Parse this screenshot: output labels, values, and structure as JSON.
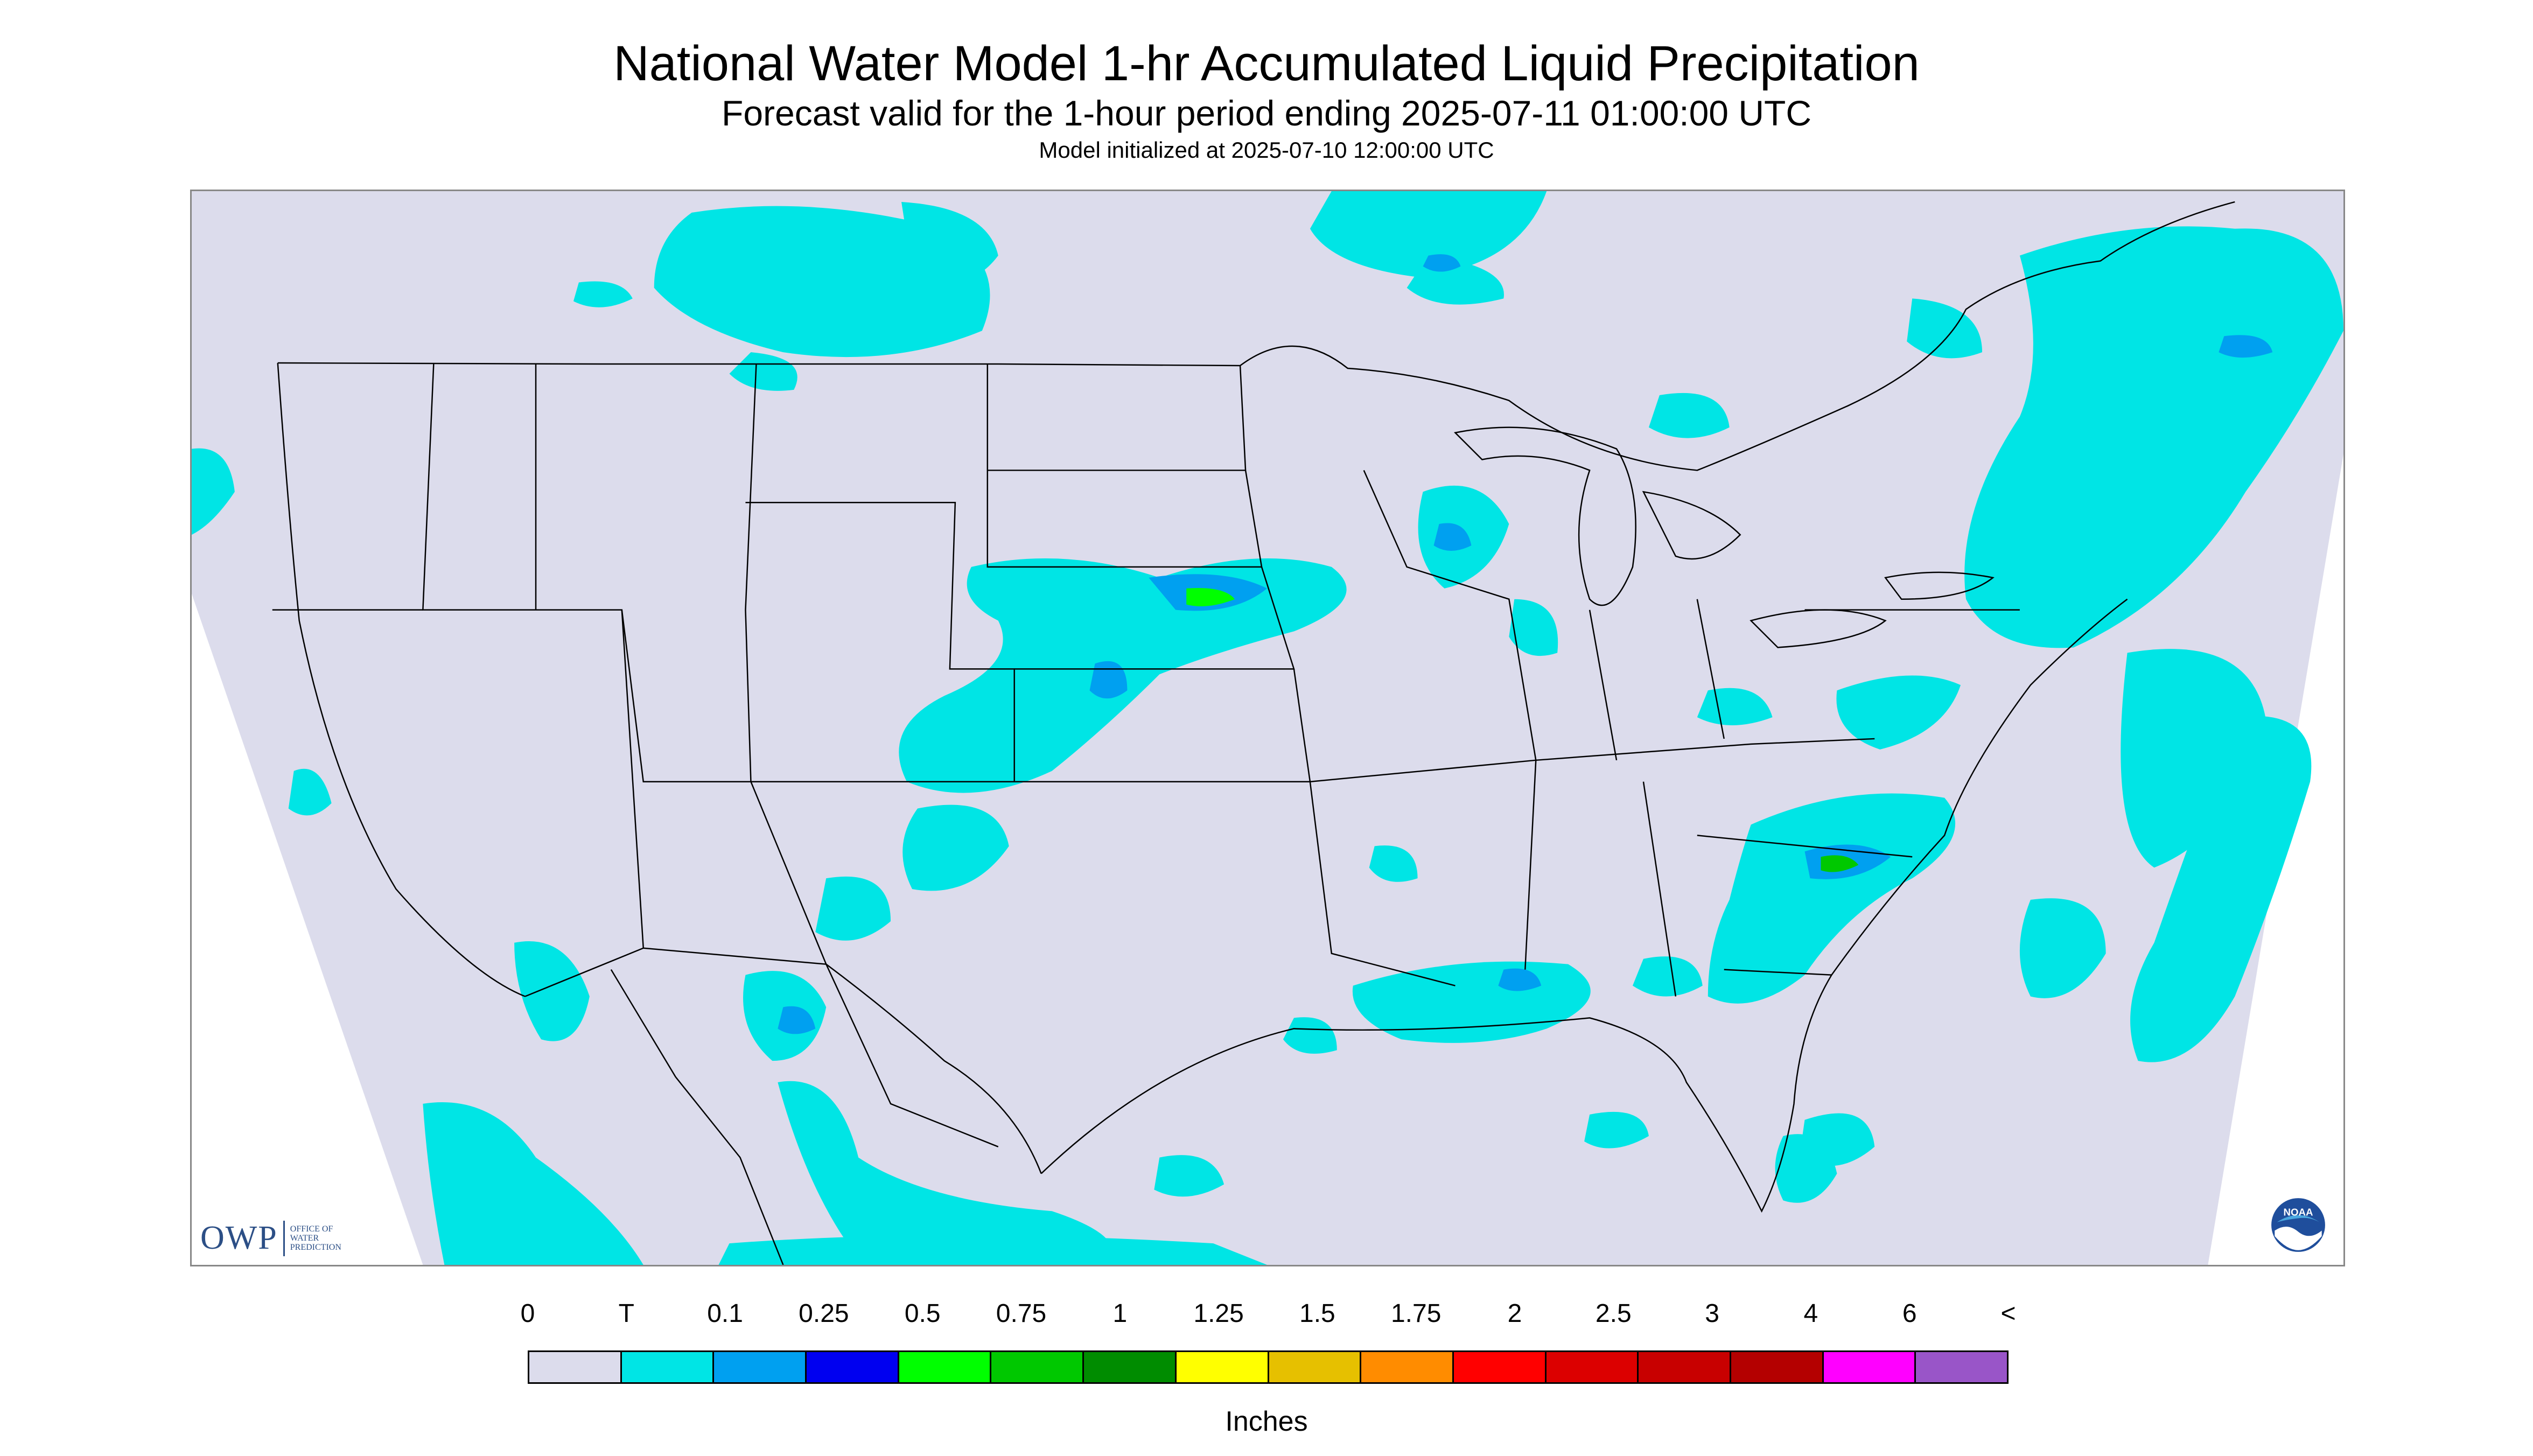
{
  "header": {
    "title": "National Water Model 1-hr Accumulated Liquid Precipitation",
    "subtitle": "Forecast valid for the 1-hour period ending 2025-07-11 01:00:00 UTC",
    "init_line": "Model initialized at 2025-07-10 12:00:00 UTC"
  },
  "map": {
    "region": "CONUS",
    "background_color": "#dcdcec",
    "precip_base_color": "#00e5e5",
    "boundary_color": "#000000",
    "owp_logo": {
      "text": "OWP",
      "sub_lines": [
        "OFFICE OF",
        "WATER",
        "PREDICTION"
      ]
    },
    "noaa_logo": {
      "text": "NOAA"
    }
  },
  "legend": {
    "labels": [
      "0",
      "T",
      "0.1",
      "0.25",
      "0.5",
      "0.75",
      "1",
      "1.25",
      "1.5",
      "1.75",
      "2",
      "2.5",
      "3",
      "4",
      "6",
      "<"
    ],
    "colors": [
      "#dcdcec",
      "#00e5e5",
      "#00a0f0",
      "#0000f0",
      "#00ff00",
      "#00c800",
      "#008c00",
      "#ffff00",
      "#e6c000",
      "#ff8c00",
      "#ff0000",
      "#dc0000",
      "#c80000",
      "#b40000",
      "#ff00ff",
      "#9955c8"
    ],
    "unit": "Inches"
  }
}
